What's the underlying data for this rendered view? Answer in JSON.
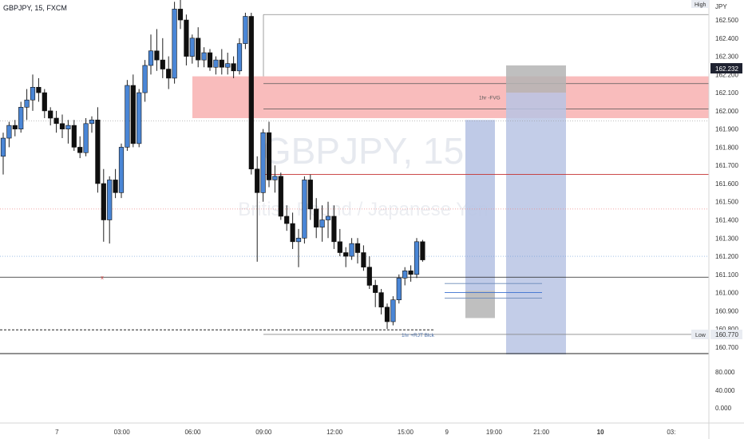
{
  "header": {
    "symbol_line": "GBPJPY, 15, FXCM"
  },
  "watermark": {
    "symbol": "GBPJPY, 15",
    "name": "British Pound / Japanese Yen"
  },
  "colors": {
    "up": "#4a86d6",
    "down": "#0f0f0f",
    "wick": "#1f1f1f",
    "fvg_zone": "#f9b8b8",
    "target_box": "#b8c4e4",
    "stop_box": "#b4b4b4",
    "red_line": "#c53030",
    "grid": "#e8e8e8"
  },
  "chart_data": {
    "type": "candlestick",
    "currency_label": "JPY",
    "ylim": [
      160.66,
      162.61
    ],
    "y_ticks": [
      "162.500",
      "162.400",
      "162.300",
      "162.200",
      "162.100",
      "162.000",
      "161.900",
      "161.800",
      "161.700",
      "161.600",
      "161.500",
      "161.400",
      "161.300",
      "161.200",
      "161.100",
      "161.000",
      "160.900",
      "160.800",
      "160.700"
    ],
    "current_price": "162.232",
    "high_label": "High",
    "low_label": "Low",
    "low_value": "160.770",
    "x_ticks": [
      {
        "label": "7",
        "bar": 9
      },
      {
        "label": "03:00",
        "bar": 20
      },
      {
        "label": "06:00",
        "bar": 32
      },
      {
        "label": "09:00",
        "bar": 44
      },
      {
        "label": "12:00",
        "bar": 56
      },
      {
        "label": "15:00",
        "bar": 68
      },
      {
        "label": "9",
        "bar": 75
      },
      {
        "label": "19:00",
        "bar": 83
      },
      {
        "label": "21:00",
        "bar": 91
      },
      {
        "label": "10",
        "bar": 101
      },
      {
        "label": "03:",
        "bar": 113
      }
    ],
    "candles": [
      [
        161.75,
        161.88,
        161.65,
        161.85
      ],
      [
        161.85,
        161.94,
        161.8,
        161.92
      ],
      [
        161.92,
        161.95,
        161.86,
        161.9
      ],
      [
        161.9,
        162.05,
        161.88,
        162.02
      ],
      [
        162.02,
        162.12,
        161.95,
        162.06
      ],
      [
        162.06,
        162.2,
        162.0,
        162.13
      ],
      [
        162.13,
        162.18,
        162.05,
        162.1
      ],
      [
        162.1,
        162.12,
        161.96,
        162.0
      ],
      [
        162.0,
        162.02,
        161.92,
        161.96
      ],
      [
        161.96,
        162.0,
        161.88,
        161.93
      ],
      [
        161.93,
        161.98,
        161.85,
        161.9
      ],
      [
        161.9,
        161.95,
        161.82,
        161.92
      ],
      [
        161.92,
        161.95,
        161.78,
        161.8
      ],
      [
        161.8,
        161.86,
        161.74,
        161.77
      ],
      [
        161.77,
        161.96,
        161.75,
        161.93
      ],
      [
        161.93,
        161.97,
        161.88,
        161.95
      ],
      [
        161.95,
        162.02,
        161.55,
        161.6
      ],
      [
        161.6,
        161.68,
        161.28,
        161.4
      ],
      [
        161.4,
        161.64,
        161.27,
        161.62
      ],
      [
        161.62,
        161.68,
        161.52,
        161.55
      ],
      [
        161.55,
        161.82,
        161.52,
        161.8
      ],
      [
        161.8,
        162.17,
        161.78,
        162.14
      ],
      [
        162.14,
        162.2,
        161.8,
        161.82
      ],
      [
        161.82,
        162.12,
        161.8,
        162.1
      ],
      [
        162.1,
        162.28,
        162.05,
        162.25
      ],
      [
        162.25,
        162.42,
        162.2,
        162.33
      ],
      [
        162.33,
        162.45,
        162.22,
        162.28
      ],
      [
        162.28,
        162.4,
        162.18,
        162.23
      ],
      [
        162.23,
        162.3,
        162.12,
        162.18
      ],
      [
        162.18,
        162.6,
        162.15,
        162.56
      ],
      [
        162.56,
        162.62,
        162.45,
        162.5
      ],
      [
        162.5,
        162.53,
        162.25,
        162.3
      ],
      [
        162.3,
        162.42,
        162.26,
        162.4
      ],
      [
        162.4,
        162.46,
        162.24,
        162.28
      ],
      [
        162.28,
        162.35,
        162.24,
        162.32
      ],
      [
        162.32,
        162.34,
        162.22,
        162.24
      ],
      [
        162.24,
        162.3,
        162.2,
        162.28
      ],
      [
        162.28,
        162.34,
        162.2,
        162.24
      ],
      [
        162.24,
        162.32,
        162.2,
        162.26
      ],
      [
        162.26,
        162.3,
        162.18,
        162.22
      ],
      [
        162.22,
        162.4,
        162.2,
        162.37
      ],
      [
        162.37,
        162.54,
        162.34,
        162.52
      ],
      [
        162.52,
        162.54,
        161.65,
        161.68
      ],
      [
        161.68,
        161.75,
        161.17,
        161.55
      ],
      [
        161.55,
        161.9,
        161.5,
        161.88
      ],
      [
        161.88,
        161.94,
        161.58,
        161.62
      ],
      [
        161.62,
        161.7,
        161.55,
        161.64
      ],
      [
        161.64,
        161.66,
        161.4,
        161.42
      ],
      [
        161.42,
        161.48,
        161.34,
        161.38
      ],
      [
        161.38,
        161.44,
        161.24,
        161.28
      ],
      [
        161.28,
        161.35,
        161.14,
        161.3
      ],
      [
        161.3,
        161.64,
        161.27,
        161.62
      ],
      [
        161.62,
        161.65,
        161.4,
        161.46
      ],
      [
        161.46,
        161.52,
        161.3,
        161.36
      ],
      [
        161.36,
        161.48,
        161.28,
        161.4
      ],
      [
        161.4,
        161.5,
        161.3,
        161.42
      ],
      [
        161.42,
        161.48,
        161.24,
        161.28
      ],
      [
        161.28,
        161.35,
        161.2,
        161.22
      ],
      [
        161.22,
        161.25,
        161.14,
        161.2
      ],
      [
        161.2,
        161.3,
        161.18,
        161.27
      ],
      [
        161.27,
        161.3,
        161.16,
        161.22
      ],
      [
        161.22,
        161.26,
        161.12,
        161.14
      ],
      [
        161.14,
        161.2,
        161.02,
        161.04
      ],
      [
        161.04,
        161.07,
        160.92,
        161.0
      ],
      [
        161.0,
        161.02,
        160.88,
        160.92
      ],
      [
        160.92,
        160.94,
        160.8,
        160.84
      ],
      [
        160.84,
        160.98,
        160.82,
        160.96
      ],
      [
        160.96,
        161.1,
        160.94,
        161.08
      ],
      [
        161.08,
        161.14,
        161.04,
        161.12
      ],
      [
        161.12,
        161.15,
        161.06,
        161.1
      ],
      [
        161.1,
        161.3,
        161.08,
        161.28
      ],
      [
        161.28,
        161.29,
        161.17,
        161.18
      ]
    ],
    "annotations": {
      "fvg_label": "1hr -FVG",
      "ob_label": "1hr +RJT Blck",
      "x_marker": "x"
    },
    "levels": {
      "fvg_top": 162.19,
      "fvg_bottom": 161.96,
      "fvg_inner_1": 162.15,
      "fvg_inner_2": 162.01,
      "red_solid": 161.65,
      "red_dotted": 161.46,
      "blue_dotted": 161.2,
      "black_line": 161.085,
      "dashed_low": 160.795,
      "low_line": 160.77,
      "high_line": 162.53,
      "bottom_black": 160.66,
      "dotted_fvg_bottom": 161.945,
      "box_top": 162.25,
      "box_entry": 162.1,
      "box_bottom": 160.66,
      "small_box_top": 161.95,
      "small_box_entry": 161.01,
      "small_box_bottom": 160.86,
      "ob_line_1": 161.05,
      "ob_line_2": 161.0,
      "ob_line_3": 160.97
    },
    "volume_ticks": [
      "80.000",
      "40.000",
      "0.000"
    ]
  }
}
